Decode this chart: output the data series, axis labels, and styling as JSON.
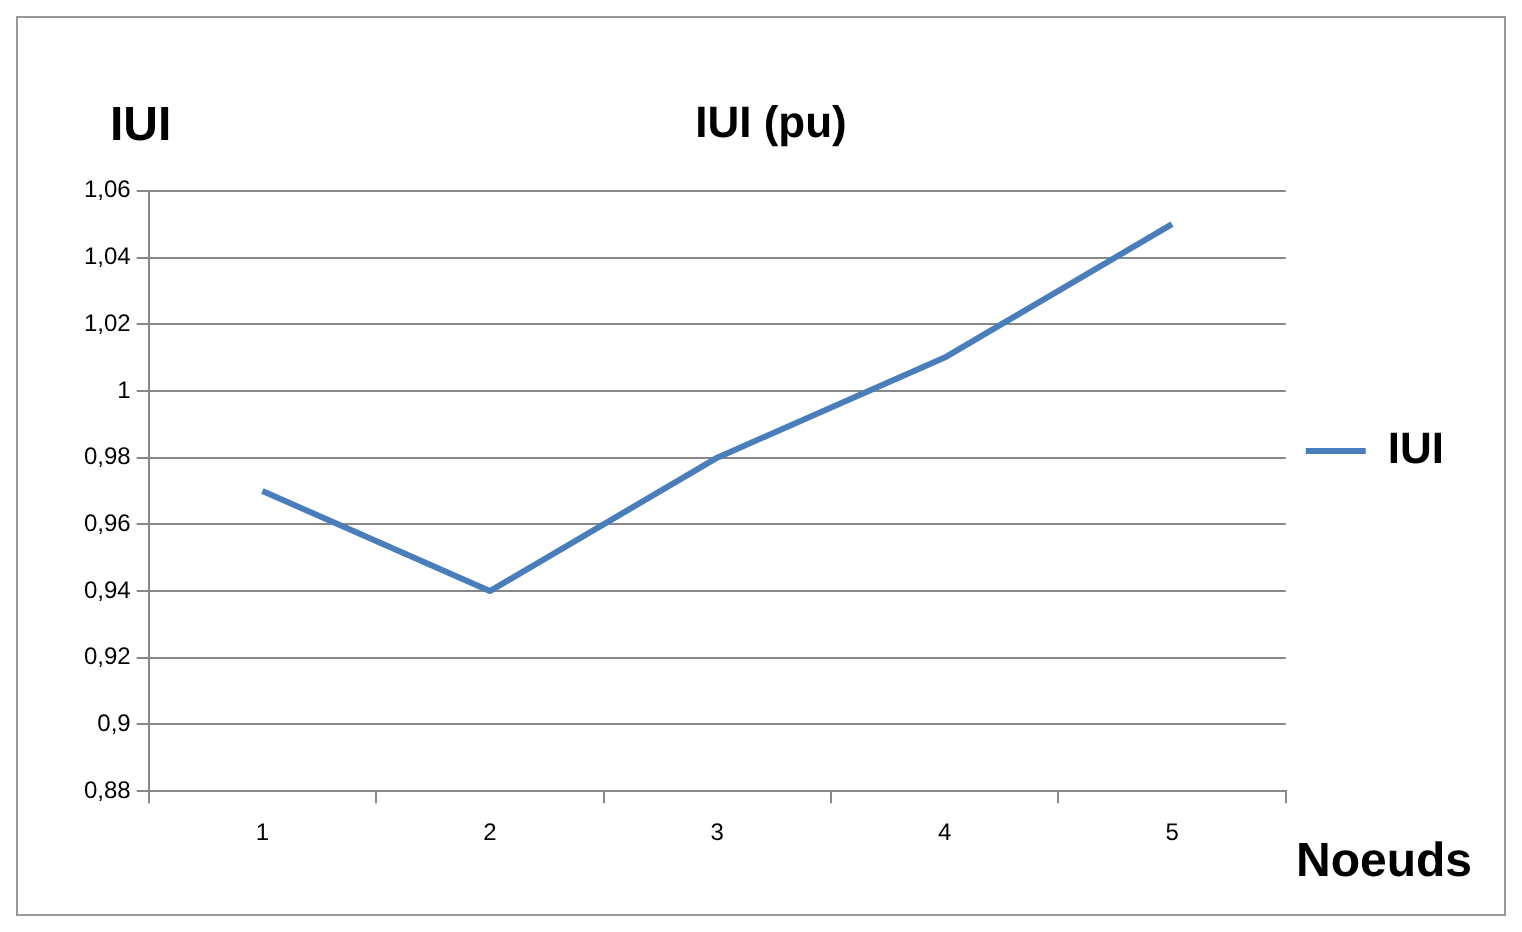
{
  "chart_data": {
    "type": "line",
    "title": "IUI (pu)",
    "ylabel": "IUI",
    "xlabel": "Noeuds",
    "categories": [
      "1",
      "2",
      "3",
      "4",
      "5"
    ],
    "series": [
      {
        "name": "IUI",
        "color": "#4a7ebb",
        "values": [
          0.97,
          0.94,
          0.98,
          1.01,
          1.05
        ]
      }
    ],
    "ylim": [
      0.88,
      1.06
    ],
    "yticks": [
      {
        "value": 0.88,
        "label": "0,88"
      },
      {
        "value": 0.9,
        "label": "0,9"
      },
      {
        "value": 0.92,
        "label": "0,92"
      },
      {
        "value": 0.94,
        "label": "0,94"
      },
      {
        "value": 0.96,
        "label": "0,96"
      },
      {
        "value": 0.98,
        "label": "0,98"
      },
      1,
      {
        "value": 1.02,
        "label": "1,02"
      },
      {
        "value": 1.04,
        "label": "1,04"
      },
      {
        "value": 1.06,
        "label": "1,06"
      }
    ],
    "grid": "y",
    "legend": "right",
    "marker": "none",
    "line_style": "solid"
  }
}
